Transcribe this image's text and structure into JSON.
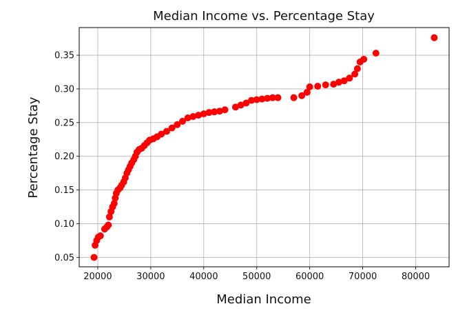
{
  "chart_data": {
    "type": "scatter",
    "title": "Median Income vs. Percentage Stay",
    "xlabel": "Median Income",
    "ylabel": "Percentage Stay",
    "xlim": [
      16500,
      86300
    ],
    "ylim": [
      0.036,
      0.391
    ],
    "x_ticks": [
      20000,
      30000,
      40000,
      50000,
      60000,
      70000,
      80000
    ],
    "x_tick_labels": [
      "20000",
      "30000",
      "40000",
      "50000",
      "60000",
      "70000",
      "80000"
    ],
    "y_ticks": [
      0.05,
      0.1,
      0.15,
      0.2,
      0.25,
      0.3,
      0.35
    ],
    "y_tick_labels": [
      "0.05",
      "0.10",
      "0.15",
      "0.20",
      "0.25",
      "0.30",
      "0.35"
    ],
    "grid": true,
    "legend": "none",
    "marker_color": "#ff0000",
    "points": [
      [
        19300,
        0.05
      ],
      [
        19500,
        0.068
      ],
      [
        19800,
        0.075
      ],
      [
        20100,
        0.08
      ],
      [
        20500,
        0.082
      ],
      [
        21300,
        0.092
      ],
      [
        21700,
        0.095
      ],
      [
        22000,
        0.098
      ],
      [
        22200,
        0.11
      ],
      [
        22500,
        0.118
      ],
      [
        22800,
        0.125
      ],
      [
        23100,
        0.13
      ],
      [
        23300,
        0.138
      ],
      [
        23500,
        0.145
      ],
      [
        23800,
        0.15
      ],
      [
        24200,
        0.153
      ],
      [
        24500,
        0.157
      ],
      [
        24900,
        0.162
      ],
      [
        25200,
        0.168
      ],
      [
        25500,
        0.175
      ],
      [
        25800,
        0.18
      ],
      [
        26100,
        0.185
      ],
      [
        26400,
        0.19
      ],
      [
        26800,
        0.195
      ],
      [
        27100,
        0.2
      ],
      [
        27400,
        0.206
      ],
      [
        27800,
        0.21
      ],
      [
        28300,
        0.212
      ],
      [
        28800,
        0.216
      ],
      [
        29300,
        0.22
      ],
      [
        29800,
        0.224
      ],
      [
        30500,
        0.226
      ],
      [
        31200,
        0.229
      ],
      [
        32000,
        0.233
      ],
      [
        33000,
        0.237
      ],
      [
        34000,
        0.242
      ],
      [
        35000,
        0.247
      ],
      [
        36000,
        0.252
      ],
      [
        37000,
        0.257
      ],
      [
        38000,
        0.259
      ],
      [
        39000,
        0.261
      ],
      [
        40000,
        0.263
      ],
      [
        41000,
        0.265
      ],
      [
        42000,
        0.266
      ],
      [
        43000,
        0.267
      ],
      [
        44000,
        0.269
      ],
      [
        46000,
        0.273
      ],
      [
        47000,
        0.276
      ],
      [
        48000,
        0.279
      ],
      [
        49000,
        0.283
      ],
      [
        50000,
        0.284
      ],
      [
        51000,
        0.285
      ],
      [
        52000,
        0.286
      ],
      [
        53000,
        0.287
      ],
      [
        54000,
        0.287
      ],
      [
        57000,
        0.287
      ],
      [
        58500,
        0.29
      ],
      [
        59500,
        0.295
      ],
      [
        60000,
        0.303
      ],
      [
        61500,
        0.304
      ],
      [
        63000,
        0.306
      ],
      [
        64500,
        0.307
      ],
      [
        65500,
        0.31
      ],
      [
        66500,
        0.312
      ],
      [
        67500,
        0.316
      ],
      [
        68500,
        0.322
      ],
      [
        69000,
        0.33
      ],
      [
        69500,
        0.34
      ],
      [
        70200,
        0.344
      ],
      [
        72500,
        0.353
      ],
      [
        83500,
        0.376
      ]
    ]
  }
}
